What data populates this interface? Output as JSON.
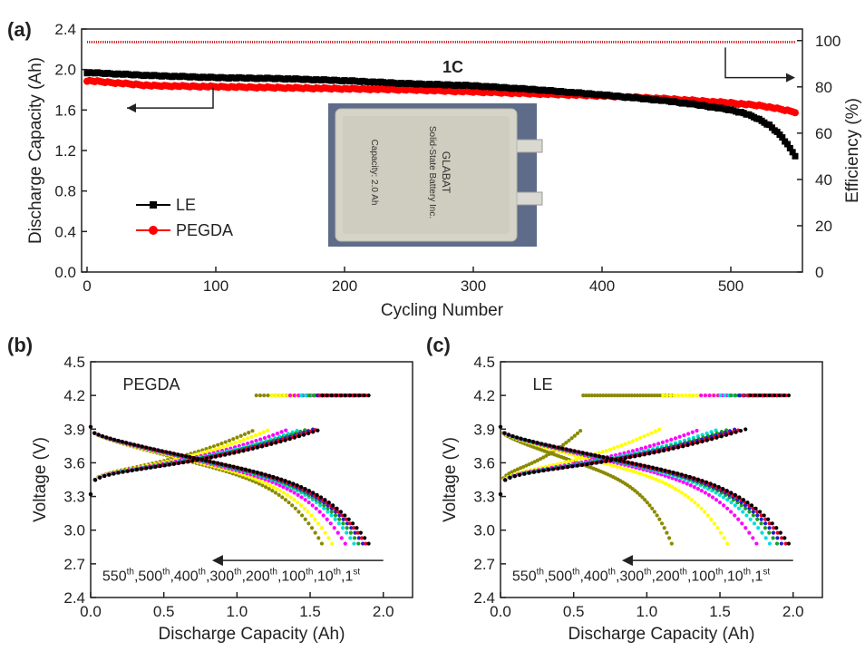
{
  "chart_data": [
    {
      "panel": "(a)",
      "type": "scatter",
      "xlabel": "Cycling Number",
      "ylabel": "Discharge Capacity (Ah)",
      "y2label": "Efficiency (%)",
      "xlim": [
        0,
        550
      ],
      "ylim": [
        0.0,
        2.4
      ],
      "y2lim": [
        0,
        105
      ],
      "xticks": [
        "0",
        "100",
        "200",
        "300",
        "400",
        "500"
      ],
      "yticks": [
        "0.0",
        "0.4",
        "0.8",
        "1.2",
        "1.6",
        "2.0",
        "2.4"
      ],
      "y2ticks": [
        "0",
        "20",
        "40",
        "60",
        "80",
        "100"
      ],
      "annotation": "1C",
      "inset_cell": {
        "title": "GLABAT",
        "subtitle": "Solid-State Battery Inc.",
        "capacity": "Capacity: 2.0 Ah"
      },
      "legend_position": "lower-left",
      "series": [
        {
          "name": "LE",
          "color": "#000000",
          "axis": "left",
          "x": [
            0,
            50,
            100,
            150,
            200,
            250,
            300,
            350,
            400,
            450,
            475,
            500,
            510,
            520,
            530,
            540,
            550
          ],
          "y": [
            1.97,
            1.94,
            1.92,
            1.91,
            1.89,
            1.86,
            1.84,
            1.8,
            1.75,
            1.69,
            1.65,
            1.6,
            1.57,
            1.52,
            1.45,
            1.33,
            1.15
          ]
        },
        {
          "name": "PEGDA",
          "color": "#ff0000",
          "axis": "left",
          "x": [
            0,
            50,
            100,
            150,
            200,
            250,
            300,
            350,
            400,
            450,
            500,
            525,
            550
          ],
          "y": [
            1.89,
            1.84,
            1.83,
            1.82,
            1.81,
            1.8,
            1.78,
            1.76,
            1.74,
            1.71,
            1.67,
            1.64,
            1.58
          ]
        },
        {
          "name": "",
          "color": "#000000",
          "axis": "right",
          "x": [
            0,
            550
          ],
          "y": [
            99.3,
            99.3
          ]
        },
        {
          "name": "",
          "color": "#ff0000",
          "axis": "right",
          "x": [
            0,
            550
          ],
          "y": [
            99.5,
            99.5
          ]
        }
      ]
    },
    {
      "panel": "(b)",
      "type": "line",
      "xlabel": "Discharge Capacity (Ah)",
      "ylabel": "Voltage (V)",
      "xlim": [
        0.0,
        2.2
      ],
      "ylim": [
        2.4,
        4.5
      ],
      "xticks": [
        "0.0",
        "0.5",
        "1.0",
        "1.5",
        "2.0"
      ],
      "yticks": [
        "2.4",
        "2.7",
        "3.0",
        "3.3",
        "3.6",
        "3.9",
        "4.2",
        "4.5"
      ],
      "label": "PEGDA",
      "cycle_labels": [
        "550",
        "500",
        "400",
        "300",
        "200",
        "100",
        "10",
        "1"
      ],
      "cycle_suffix": "th",
      "cycle_suffix_last": "st",
      "series": [
        {
          "cycle": "1st",
          "color": "#000000",
          "capacity": 1.9
        },
        {
          "cycle": "10th",
          "color": "#e8002a",
          "capacity": 1.88
        },
        {
          "cycle": "100th",
          "color": "#2020d0",
          "capacity": 1.86
        },
        {
          "cycle": "200th",
          "color": "#1f9e1f",
          "capacity": 1.83
        },
        {
          "cycle": "300th",
          "color": "#00dede",
          "capacity": 1.8
        },
        {
          "cycle": "400th",
          "color": "#ff00ff",
          "capacity": 1.74
        },
        {
          "cycle": "500th",
          "color": "#ffff00",
          "capacity": 1.65
        },
        {
          "cycle": "550th",
          "color": "#8a8a00",
          "capacity": 1.58
        }
      ]
    },
    {
      "panel": "(c)",
      "type": "line",
      "xlabel": "Discharge Capacity (Ah)",
      "ylabel": "Voltage (V)",
      "xlim": [
        0.0,
        2.2
      ],
      "ylim": [
        2.4,
        4.5
      ],
      "xticks": [
        "0.0",
        "0.5",
        "1.0",
        "1.5",
        "2.0"
      ],
      "yticks": [
        "2.4",
        "2.7",
        "3.0",
        "3.3",
        "3.6",
        "3.9",
        "4.2",
        "4.5"
      ],
      "label": "LE",
      "cycle_labels": [
        "550",
        "500",
        "400",
        "300",
        "200",
        "100",
        "10",
        "1"
      ],
      "cycle_suffix": "th",
      "cycle_suffix_last": "st",
      "series": [
        {
          "cycle": "1st",
          "color": "#000000",
          "capacity": 1.97
        },
        {
          "cycle": "10th",
          "color": "#e8002a",
          "capacity": 1.95
        },
        {
          "cycle": "100th",
          "color": "#2020d0",
          "capacity": 1.92
        },
        {
          "cycle": "200th",
          "color": "#1f9e1f",
          "capacity": 1.89
        },
        {
          "cycle": "300th",
          "color": "#00dede",
          "capacity": 1.84
        },
        {
          "cycle": "400th",
          "color": "#ff00ff",
          "capacity": 1.75
        },
        {
          "cycle": "500th",
          "color": "#ffff00",
          "capacity": 1.55
        },
        {
          "cycle": "550th",
          "color": "#8a8a00",
          "capacity": 1.17
        }
      ]
    }
  ]
}
